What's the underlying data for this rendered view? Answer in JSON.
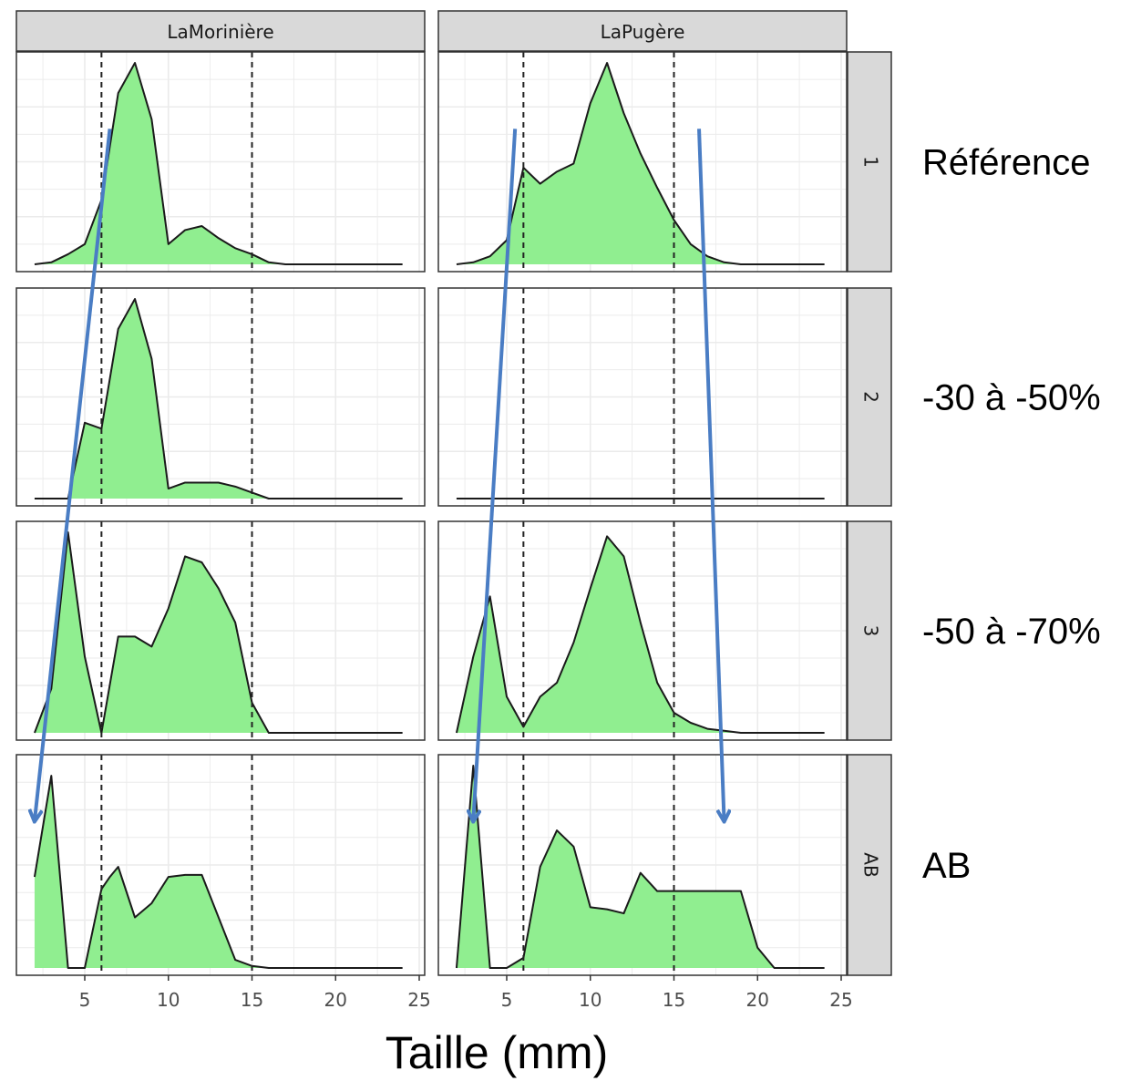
{
  "chart_data": {
    "type": "area",
    "xlabel": "Taille (mm)",
    "ylabel": "",
    "xlim": [
      1,
      25
    ],
    "xticks": [
      5,
      10,
      15,
      20,
      25
    ],
    "x_tick_labels": [
      "5",
      "10",
      "15",
      "20",
      "25"
    ],
    "grid": true,
    "reference_lines_x": [
      6,
      15
    ],
    "columns": [
      {
        "name": "LaMorinière"
      },
      {
        "name": "LaPugère"
      }
    ],
    "rows": [
      {
        "strip": "1",
        "annotation": "Référence"
      },
      {
        "strip": "2",
        "annotation": "-30 à -50%"
      },
      {
        "strip": "3",
        "annotation": "-50 à -70%"
      },
      {
        "strip": "AB",
        "annotation": "AB"
      }
    ],
    "panels": [
      {
        "column": "LaMorinière",
        "row": "1",
        "x": [
          2,
          3,
          4,
          5,
          6,
          7,
          8,
          9,
          10,
          11,
          12,
          13,
          14,
          15,
          16,
          17,
          18,
          19,
          20,
          21,
          22,
          23,
          24
        ],
        "y": [
          0,
          0.01,
          0.05,
          0.1,
          0.32,
          0.85,
          1.0,
          0.72,
          0.1,
          0.17,
          0.19,
          0.13,
          0.08,
          0.05,
          0.01,
          0,
          0,
          0,
          0,
          0,
          0,
          0,
          0
        ]
      },
      {
        "column": "LaMorinière",
        "row": "2",
        "x": [
          2,
          3,
          4,
          5,
          6,
          7,
          8,
          9,
          10,
          11,
          12,
          13,
          14,
          15,
          16,
          17,
          18,
          19,
          20,
          21,
          22,
          23,
          24
        ],
        "y": [
          0,
          0,
          0,
          0.38,
          0.35,
          0.85,
          1.0,
          0.7,
          0.05,
          0.08,
          0.08,
          0.08,
          0.06,
          0.03,
          0,
          0,
          0,
          0,
          0,
          0,
          0,
          0,
          0
        ]
      },
      {
        "column": "LaMorinière",
        "row": "3",
        "x": [
          2,
          3,
          4,
          5,
          6,
          7,
          8,
          9,
          10,
          11,
          12,
          13,
          14,
          15,
          16,
          17,
          18,
          19,
          20,
          21,
          22,
          23,
          24
        ],
        "y": [
          0,
          0.22,
          1.0,
          0.38,
          0.0,
          0.48,
          0.48,
          0.43,
          0.62,
          0.88,
          0.85,
          0.72,
          0.55,
          0.15,
          0,
          0,
          0,
          0,
          0,
          0,
          0,
          0,
          0
        ]
      },
      {
        "column": "LaMorinière",
        "row": "AB",
        "x": [
          2,
          3,
          4,
          5,
          6,
          6.5,
          7,
          8,
          9,
          10,
          11,
          12,
          13,
          14,
          15,
          16,
          17,
          18,
          19,
          20,
          21,
          22,
          23,
          24
        ],
        "y": [
          0.45,
          0.95,
          0,
          0,
          0.39,
          0.45,
          0.5,
          0.25,
          0.32,
          0.45,
          0.46,
          0.46,
          0.25,
          0.04,
          0.01,
          0,
          0,
          0,
          0,
          0,
          0,
          0,
          0,
          0
        ]
      },
      {
        "column": "LaPugère",
        "row": "1",
        "x": [
          2,
          3,
          4,
          5,
          6,
          7,
          8,
          9,
          10,
          11,
          12,
          13,
          14,
          15,
          16,
          17,
          18,
          19,
          20,
          21,
          22,
          23,
          24
        ],
        "y": [
          0,
          0.01,
          0.04,
          0.12,
          0.48,
          0.4,
          0.46,
          0.5,
          0.8,
          1.0,
          0.75,
          0.55,
          0.38,
          0.22,
          0.1,
          0.04,
          0.01,
          0,
          0,
          0,
          0,
          0,
          0
        ]
      },
      {
        "column": "LaPugère",
        "row": "2",
        "x": [
          2,
          24
        ],
        "y": [
          0,
          0
        ]
      },
      {
        "column": "LaPugère",
        "row": "3",
        "x": [
          2,
          3,
          4,
          5,
          6,
          7,
          8,
          9,
          10,
          11,
          12,
          13,
          14,
          15,
          16,
          17,
          18,
          19,
          20,
          21,
          22,
          23,
          24
        ],
        "y": [
          0,
          0.38,
          0.68,
          0.18,
          0.03,
          0.18,
          0.25,
          0.45,
          0.72,
          0.98,
          0.88,
          0.55,
          0.25,
          0.1,
          0.05,
          0.02,
          0.01,
          0,
          0,
          0,
          0,
          0,
          0
        ]
      },
      {
        "column": "LaPugère",
        "row": "AB",
        "x": [
          2,
          3,
          4,
          5,
          6,
          7,
          8,
          9,
          10,
          11,
          12,
          13,
          14,
          15,
          16,
          17,
          18,
          19,
          20,
          21,
          22,
          23,
          24
        ],
        "y": [
          0,
          1.0,
          0,
          0,
          0.05,
          0.5,
          0.68,
          0.6,
          0.3,
          0.29,
          0.27,
          0.47,
          0.38,
          0.38,
          0.38,
          0.38,
          0.38,
          0.38,
          0.1,
          0,
          0,
          0,
          0
        ]
      }
    ],
    "arrows": [
      {
        "column": "LaMorinière",
        "from": [
          6.5,
          "1"
        ],
        "to": [
          2,
          "AB"
        ]
      },
      {
        "column": "LaPugère",
        "from": [
          5.5,
          "1"
        ],
        "to": [
          3,
          "AB"
        ]
      },
      {
        "column": "LaPugère",
        "from": [
          16.5,
          "1"
        ],
        "to": [
          18,
          "AB"
        ]
      }
    ],
    "colors": {
      "fill": "#90EE90",
      "line": "#1a1a1a",
      "strip_bg": "#d9d9d9",
      "grid": "#ebebeb",
      "arrow": "#4a7dc4"
    }
  }
}
